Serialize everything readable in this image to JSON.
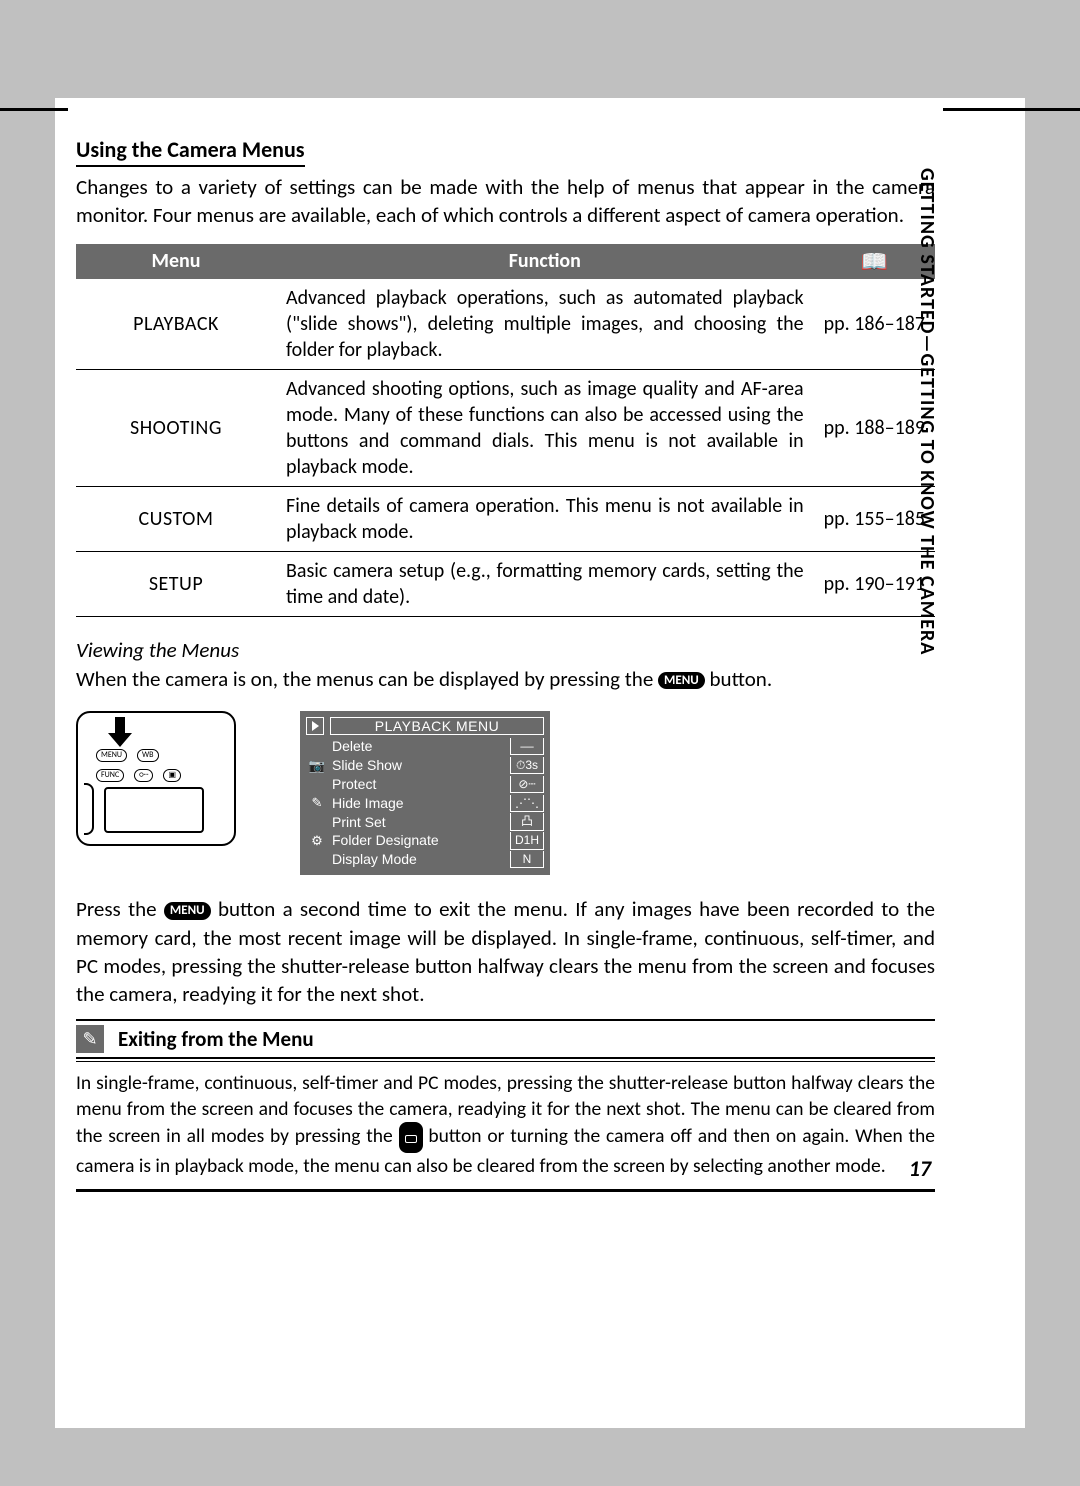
{
  "colors": {
    "page_bg": "#c0c0c0",
    "content_bg": "#ffffff",
    "header_bg": "#6a6a6a",
    "header_fg": "#ffffff",
    "text": "#000000",
    "rule": "#000000",
    "lcd_bg": "#6a6a6a",
    "lcd_fg": "#ffffff"
  },
  "typography": {
    "body_fontsize_pt": 16,
    "title_fontsize_pt": 17,
    "table_fontsize_pt": 15,
    "tip_body_fontsize_pt": 15,
    "font_family": "Gill Sans"
  },
  "section": {
    "title": "Using the Camera Menus",
    "intro": "Changes to a variety of settings can be made with the help of menus that appear in the camera monitor.  Four menus are available, each of which controls a different aspect of camera operation."
  },
  "table": {
    "columns": [
      "Menu",
      "Function",
      "pages_icon"
    ],
    "pages_icon_label": "⦿",
    "rows": [
      {
        "menu": "PLAYBACK",
        "function": "Advanced playback operations, such as automated playback (\"slide shows\"), deleting multiple images, and choosing the folder for playback.",
        "pages": "pp. 186–187"
      },
      {
        "menu": "SHOOTING",
        "function": "Advanced shooting options, such as image quality and AF-area mode.  Many of these functions can also be accessed using the buttons and command dials.  This menu is not available in playback mode.",
        "pages": "pp. 188–189"
      },
      {
        "menu": "CUSTOM",
        "function": "Fine details of camera operation. This menu is not available in playback mode.",
        "pages": "pp. 155–185"
      },
      {
        "menu": "SETUP",
        "function": "Basic camera setup (e.g., formatting memory cards, setting the time and date).",
        "pages": "pp. 190–191"
      }
    ]
  },
  "viewing": {
    "heading": "Viewing the Menus",
    "line_before": "When the camera is on, the menus can be displayed by pressing the ",
    "menu_label": "MENU",
    "line_after": " button."
  },
  "camera_diagram": {
    "buttons_row1": [
      "MENU",
      "WB"
    ],
    "buttons_row2": [
      "FUNC",
      "○┄",
      "▣"
    ]
  },
  "lcd": {
    "title": "PLAYBACK MENU",
    "items": [
      {
        "icon": "",
        "label": "Delete",
        "value": "––"
      },
      {
        "icon": "📷",
        "label": "Slide Show",
        "value": "⏱3s"
      },
      {
        "icon": "",
        "label": "Protect",
        "value": "⊘┄"
      },
      {
        "icon": "✎",
        "label": "Hide Image",
        "value": "⋰⋱"
      },
      {
        "icon": "",
        "label": "Print Set",
        "value": "凸"
      },
      {
        "icon": "⚙",
        "label": "Folder Designate",
        "value": "D1H"
      },
      {
        "icon": "",
        "label": "Display Mode",
        "value": "N"
      }
    ]
  },
  "after_figures": {
    "part1": "Press the ",
    "menu_label": "MENU",
    "part2": " button a second time to exit the menu.  If any images have been recorded to the memory card, the most recent image will be displayed.  In single-frame, continuous, self-timer, and PC modes, pressing the shutter-release button halfway clears the menu from the screen and focuses the camera, readying it for the next shot."
  },
  "tip": {
    "icon": "✎",
    "title": "Exiting from the Menu",
    "body_part1": "In single-frame, continuous, self-timer and PC modes, pressing the shutter-release button halfway clears the menu from the screen and focuses the camera, readying it for the next shot.  The menu can be cleared from the screen in all modes by pressing the ",
    "body_part2": " button or turning the camera off and then on again.  When the camera is in playback mode, the menu can also be cleared from the screen by selecting another mode."
  },
  "side_label": "GETTING STARTED—GETTING TO KNOW THE CAMERA",
  "page_number": "17"
}
